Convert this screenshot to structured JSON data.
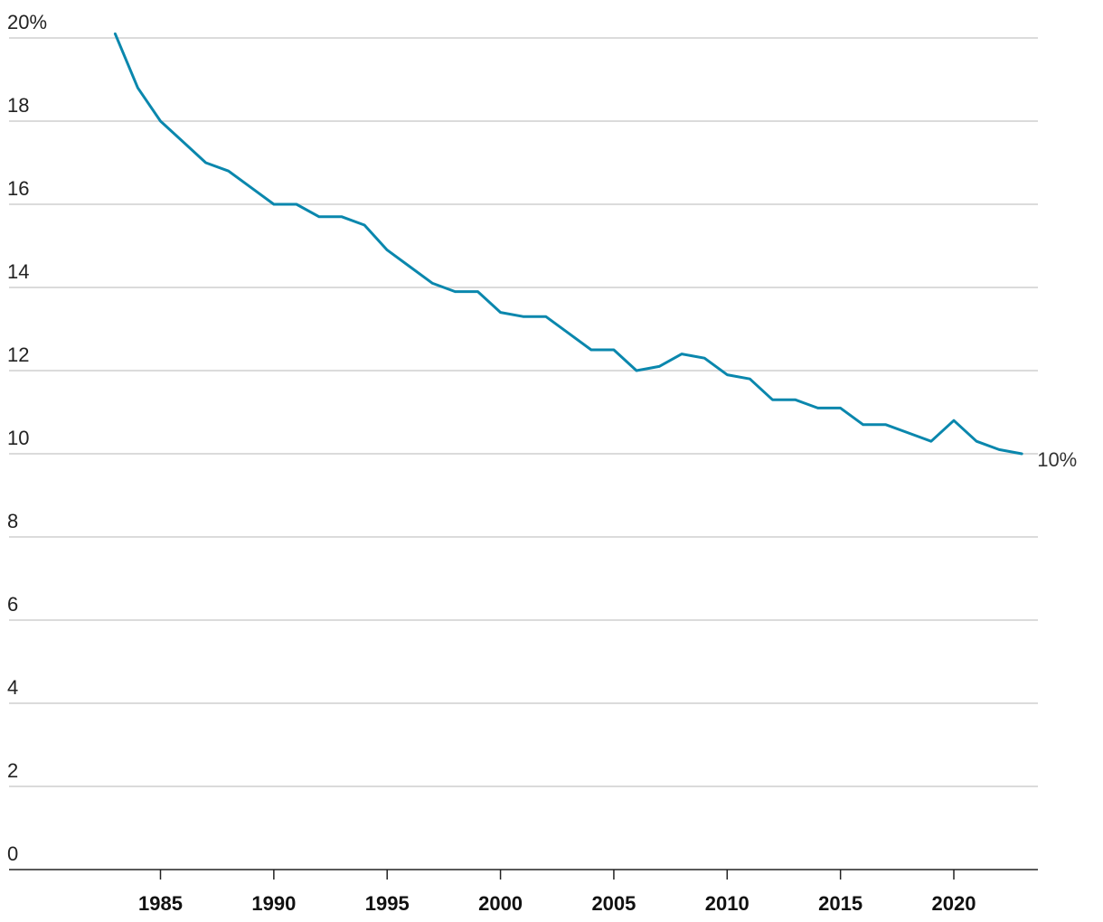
{
  "chart_data": {
    "type": "line",
    "title": "",
    "xlabel": "",
    "ylabel": "",
    "xlim": [
      1980,
      2023.4
    ],
    "ylim": [
      0,
      20
    ],
    "grid": true,
    "y_ticks": [
      0,
      2,
      4,
      6,
      8,
      10,
      12,
      14,
      16,
      18,
      20
    ],
    "y_tick_labels": [
      "0",
      "2",
      "4",
      "6",
      "8",
      "10",
      "12",
      "14",
      "16",
      "18",
      "20%"
    ],
    "x_ticks": [
      1985,
      1990,
      1995,
      2000,
      2005,
      2010,
      2015,
      2020
    ],
    "x_tick_labels": [
      "1985",
      "1990",
      "1995",
      "2000",
      "2005",
      "2010",
      "2015",
      "2020"
    ],
    "series": [
      {
        "color": "#0a87ad",
        "x": [
          1983,
          1984,
          1985,
          1986,
          1987,
          1988,
          1989,
          1990,
          1991,
          1992,
          1993,
          1994,
          1995,
          1996,
          1997,
          1998,
          1999,
          2000,
          2001,
          2002,
          2003,
          2004,
          2005,
          2006,
          2007,
          2008,
          2009,
          2010,
          2011,
          2012,
          2013,
          2014,
          2015,
          2016,
          2017,
          2018,
          2019,
          2020,
          2021,
          2022,
          2023
        ],
        "values": [
          20.1,
          18.8,
          18.0,
          17.5,
          17.0,
          16.8,
          16.4,
          16.0,
          16.0,
          15.7,
          15.7,
          15.5,
          14.9,
          14.5,
          14.1,
          13.9,
          13.9,
          13.4,
          13.3,
          13.3,
          12.9,
          12.5,
          12.5,
          12.0,
          12.1,
          12.4,
          12.3,
          11.9,
          11.8,
          11.3,
          11.3,
          11.1,
          11.1,
          10.7,
          10.7,
          10.5,
          10.3,
          10.8,
          10.3,
          10.1,
          10.0
        ]
      }
    ],
    "annotations": [
      {
        "text": "10%",
        "x": 2023,
        "y": 10.0
      }
    ]
  }
}
